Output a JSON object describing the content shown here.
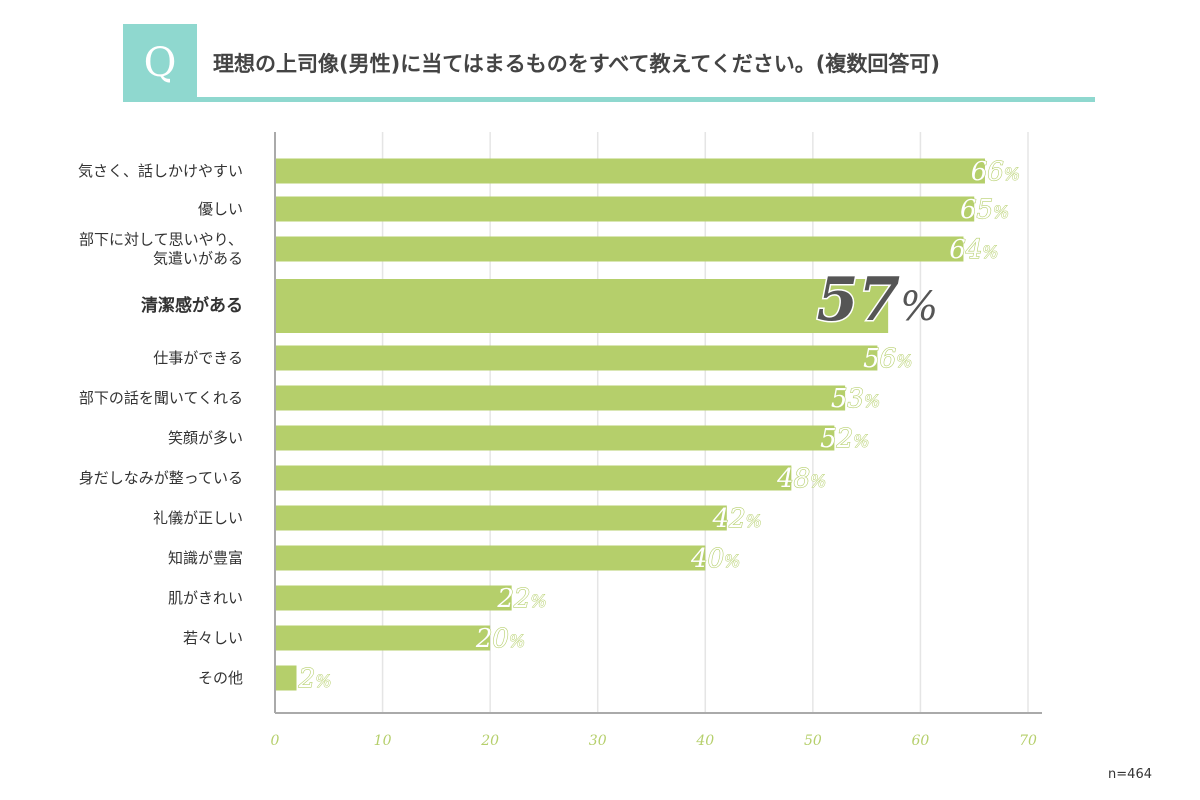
{
  "header": {
    "q_mark": "Q",
    "question": "理想の上司像(男性)に当てはまるものをすべて教えてください。(複数回答可)"
  },
  "sample_size": "n=464",
  "chart_data": {
    "type": "bar",
    "orientation": "horizontal",
    "categories": [
      [
        "気さく、話しかけやすい"
      ],
      [
        "優しい"
      ],
      [
        "部下に対して思いやり、",
        "気遣いがある"
      ],
      [
        "清潔感がある"
      ],
      [
        "仕事ができる"
      ],
      [
        "部下の話を聞いてくれる"
      ],
      [
        "笑顔が多い"
      ],
      [
        "身だしなみが整っている"
      ],
      [
        "礼儀が正しい"
      ],
      [
        "知識が豊富"
      ],
      [
        "肌がきれい"
      ],
      [
        "若々しい"
      ],
      [
        "その他"
      ]
    ],
    "values": [
      66,
      65,
      64,
      57,
      56,
      53,
      52,
      48,
      42,
      40,
      22,
      20,
      2
    ],
    "value_suffix": "%",
    "highlight_index": 3,
    "xlim": [
      0,
      70
    ],
    "xticks": [
      0,
      10,
      20,
      30,
      40,
      50,
      60,
      70
    ],
    "grid": true,
    "colors": {
      "bar": "#b5cf6b",
      "grid": "#e5e5e5",
      "axis": "#aaaaaa",
      "accent": "#8fd8cf"
    }
  }
}
